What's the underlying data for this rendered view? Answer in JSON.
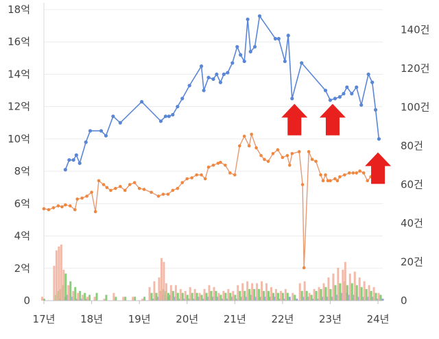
{
  "chart_data": {
    "type": "line",
    "xlabels": [
      "17년",
      "18년",
      "19년",
      "20년",
      "21년",
      "22년",
      "23년",
      "24년"
    ],
    "xlim": [
      2017.0,
      2024.1
    ],
    "y_left": {
      "ticks": [
        "0",
        "2억",
        "4억",
        "6억",
        "8억",
        "10억",
        "12억",
        "14억",
        "16억",
        "18억"
      ],
      "range": [
        0,
        18
      ],
      "unit": "억"
    },
    "y_right": {
      "ticks": [
        "0",
        "20건",
        "40건",
        "60건",
        "80건",
        "100건",
        "120건",
        "140건"
      ],
      "range": [
        0,
        160
      ],
      "unit": "건"
    },
    "grid": true,
    "series": [
      {
        "axis": "left",
        "color": "#5a86d6",
        "points": [
          [
            2017.45,
            8.1
          ],
          [
            2017.53,
            8.7
          ],
          [
            2017.62,
            8.7
          ],
          [
            2017.68,
            9.0
          ],
          [
            2017.75,
            8.5
          ],
          [
            2017.88,
            9.8
          ],
          [
            2017.97,
            10.5
          ],
          [
            2018.2,
            10.5
          ],
          [
            2018.3,
            10.2
          ],
          [
            2018.45,
            11.4
          ],
          [
            2018.6,
            11.0
          ],
          [
            2019.05,
            12.3
          ],
          [
            2019.45,
            11.1
          ],
          [
            2019.55,
            11.4
          ],
          [
            2019.62,
            11.4
          ],
          [
            2019.7,
            11.5
          ],
          [
            2019.8,
            12.0
          ],
          [
            2019.9,
            12.5
          ],
          [
            2020.05,
            13.3
          ],
          [
            2020.3,
            14.5
          ],
          [
            2020.35,
            13.0
          ],
          [
            2020.45,
            13.8
          ],
          [
            2020.55,
            13.7
          ],
          [
            2020.62,
            14.0
          ],
          [
            2020.7,
            13.5
          ],
          [
            2020.77,
            14.0
          ],
          [
            2020.85,
            14.1
          ],
          [
            2020.95,
            14.7
          ],
          [
            2021.05,
            15.7
          ],
          [
            2021.12,
            15.2
          ],
          [
            2021.2,
            14.8
          ],
          [
            2021.27,
            17.4
          ],
          [
            2021.33,
            15.4
          ],
          [
            2021.42,
            15.7
          ],
          [
            2021.52,
            17.6
          ],
          [
            2021.85,
            16.2
          ],
          [
            2021.92,
            16.2
          ],
          [
            2022.05,
            14.8
          ],
          [
            2022.12,
            16.4
          ],
          [
            2022.2,
            12.5
          ],
          [
            2022.4,
            14.7
          ],
          [
            2022.9,
            13.0
          ],
          [
            2023.0,
            12.4
          ],
          [
            2023.1,
            12.5
          ],
          [
            2023.2,
            12.6
          ],
          [
            2023.28,
            12.8
          ],
          [
            2023.35,
            13.2
          ],
          [
            2023.45,
            12.8
          ],
          [
            2023.55,
            13.2
          ],
          [
            2023.65,
            12.1
          ],
          [
            2023.8,
            14.0
          ],
          [
            2023.88,
            13.5
          ],
          [
            2023.95,
            11.8
          ],
          [
            2024.02,
            10.0
          ]
        ]
      },
      {
        "axis": "right",
        "color": "#e69a74",
        "marker_color": "#f0873f",
        "points": [
          [
            2017.0,
            47.5
          ],
          [
            2017.1,
            47
          ],
          [
            2017.2,
            48
          ],
          [
            2017.3,
            49
          ],
          [
            2017.38,
            48.5
          ],
          [
            2017.45,
            49.5
          ],
          [
            2017.55,
            49
          ],
          [
            2017.65,
            47
          ],
          [
            2017.7,
            52.5
          ],
          [
            2017.8,
            53
          ],
          [
            2017.9,
            54
          ],
          [
            2018.0,
            56
          ],
          [
            2018.08,
            46
          ],
          [
            2018.15,
            62
          ],
          [
            2018.25,
            60
          ],
          [
            2018.32,
            58.5
          ],
          [
            2018.4,
            57
          ],
          [
            2018.5,
            58
          ],
          [
            2018.6,
            59
          ],
          [
            2018.7,
            57
          ],
          [
            2018.8,
            60
          ],
          [
            2018.9,
            61
          ],
          [
            2019.0,
            58
          ],
          [
            2019.1,
            57.5
          ],
          [
            2019.25,
            56
          ],
          [
            2019.4,
            54
          ],
          [
            2019.5,
            55
          ],
          [
            2019.6,
            55
          ],
          [
            2019.7,
            57
          ],
          [
            2019.8,
            58
          ],
          [
            2019.9,
            61
          ],
          [
            2020.0,
            63
          ],
          [
            2020.1,
            63.5
          ],
          [
            2020.2,
            65
          ],
          [
            2020.3,
            65
          ],
          [
            2020.38,
            63
          ],
          [
            2020.45,
            69
          ],
          [
            2020.55,
            70
          ],
          [
            2020.65,
            71
          ],
          [
            2020.7,
            71.5
          ],
          [
            2020.8,
            70
          ],
          [
            2020.9,
            66
          ],
          [
            2021.0,
            65
          ],
          [
            2021.1,
            80
          ],
          [
            2021.2,
            85
          ],
          [
            2021.3,
            80
          ],
          [
            2021.35,
            86
          ],
          [
            2021.45,
            79
          ],
          [
            2021.55,
            75
          ],
          [
            2021.62,
            73
          ],
          [
            2021.7,
            72
          ],
          [
            2021.8,
            76
          ],
          [
            2021.9,
            78
          ],
          [
            2022.0,
            74
          ],
          [
            2022.1,
            75
          ],
          [
            2022.15,
            70
          ],
          [
            2022.2,
            76
          ],
          [
            2022.35,
            77
          ],
          [
            2022.42,
            60
          ],
          [
            2022.45,
            17
          ],
          [
            2022.55,
            77
          ],
          [
            2022.62,
            73
          ],
          [
            2022.7,
            72
          ],
          [
            2022.8,
            65
          ],
          [
            2022.85,
            62
          ],
          [
            2022.9,
            65
          ],
          [
            2022.95,
            62
          ],
          [
            2023.0,
            62
          ],
          [
            2023.1,
            63
          ],
          [
            2023.15,
            62
          ],
          [
            2023.2,
            64
          ],
          [
            2023.3,
            65
          ],
          [
            2023.4,
            66
          ],
          [
            2023.48,
            66
          ],
          [
            2023.55,
            66
          ],
          [
            2023.62,
            67
          ],
          [
            2023.7,
            66
          ],
          [
            2023.78,
            62
          ],
          [
            2023.85,
            64
          ],
          [
            2023.92,
            70
          ],
          [
            2024.0,
            71.5
          ],
          [
            2024.05,
            69
          ]
        ]
      }
    ],
    "volume_bars": {
      "axis": "right",
      "colors": [
        "#f2b2a0",
        "#7cc96e",
        "#8d93e0"
      ],
      "bars": [
        [
          2017.0,
          2,
          1,
          0
        ],
        [
          2017.25,
          18,
          3,
          0
        ],
        [
          2017.3,
          26,
          5,
          1
        ],
        [
          2017.35,
          28,
          6,
          0
        ],
        [
          2017.4,
          29,
          8,
          2
        ],
        [
          2017.45,
          16,
          14,
          3
        ],
        [
          2017.55,
          8,
          10,
          2
        ],
        [
          2017.65,
          5,
          7,
          1
        ],
        [
          2017.75,
          4,
          5,
          1
        ],
        [
          2017.85,
          3,
          4,
          1
        ],
        [
          2017.95,
          2,
          3,
          0
        ],
        [
          2018.1,
          2,
          4,
          0
        ],
        [
          2018.3,
          1,
          3,
          0
        ],
        [
          2018.5,
          4,
          2,
          0
        ],
        [
          2018.7,
          2,
          2,
          0
        ],
        [
          2018.9,
          2,
          2,
          0
        ],
        [
          2019.1,
          1,
          2,
          0
        ],
        [
          2019.25,
          7,
          4,
          1
        ],
        [
          2019.35,
          10,
          4,
          2
        ],
        [
          2019.45,
          12,
          5,
          3
        ],
        [
          2019.5,
          22,
          6,
          3
        ],
        [
          2019.55,
          20,
          5,
          2
        ],
        [
          2019.6,
          9,
          4,
          3
        ],
        [
          2019.7,
          8,
          5,
          2
        ],
        [
          2019.8,
          8,
          4,
          1
        ],
        [
          2019.9,
          6,
          4,
          1
        ],
        [
          2020.0,
          5,
          3,
          1
        ],
        [
          2020.1,
          7,
          4,
          1
        ],
        [
          2020.2,
          6,
          4,
          2
        ],
        [
          2020.3,
          4,
          3,
          1
        ],
        [
          2020.4,
          6,
          4,
          2
        ],
        [
          2020.5,
          8,
          5,
          2
        ],
        [
          2020.6,
          7,
          5,
          2
        ],
        [
          2020.7,
          4,
          3,
          1
        ],
        [
          2020.8,
          5,
          4,
          1
        ],
        [
          2020.9,
          6,
          4,
          2
        ],
        [
          2021.0,
          5,
          3,
          1
        ],
        [
          2021.1,
          8,
          5,
          2
        ],
        [
          2021.2,
          9,
          5,
          2
        ],
        [
          2021.3,
          10,
          6,
          3
        ],
        [
          2021.4,
          9,
          6,
          2
        ],
        [
          2021.5,
          9,
          6,
          2
        ],
        [
          2021.6,
          10,
          5,
          2
        ],
        [
          2021.7,
          9,
          5,
          2
        ],
        [
          2021.8,
          7,
          4,
          2
        ],
        [
          2021.9,
          6,
          4,
          1
        ],
        [
          2022.0,
          5,
          4,
          1
        ],
        [
          2022.1,
          6,
          4,
          2
        ],
        [
          2022.25,
          4,
          3,
          1
        ],
        [
          2022.4,
          9,
          5,
          2
        ],
        [
          2022.5,
          10,
          5,
          2
        ],
        [
          2022.6,
          4,
          3,
          1
        ],
        [
          2022.7,
          6,
          5,
          1
        ],
        [
          2022.8,
          7,
          6,
          2
        ],
        [
          2022.9,
          9,
          7,
          2
        ],
        [
          2023.0,
          12,
          6,
          2
        ],
        [
          2023.1,
          14,
          8,
          3
        ],
        [
          2023.2,
          17,
          9,
          4
        ],
        [
          2023.3,
          16,
          10,
          4
        ],
        [
          2023.35,
          20,
          8,
          3
        ],
        [
          2023.45,
          14,
          9,
          3
        ],
        [
          2023.55,
          15,
          8,
          2
        ],
        [
          2023.65,
          12,
          7,
          2
        ],
        [
          2023.75,
          10,
          6,
          2
        ],
        [
          2023.85,
          8,
          5,
          2
        ],
        [
          2023.95,
          7,
          4,
          1
        ],
        [
          2024.05,
          4,
          3,
          1
        ]
      ]
    },
    "annotations": [
      {
        "type": "arrow-up",
        "color": "#e8211e",
        "x": 2022.25,
        "y_left": 12.0
      },
      {
        "type": "arrow-up",
        "color": "#e8211e",
        "x": 2023.05,
        "y_left": 12.0
      },
      {
        "type": "arrow-up",
        "color": "#e8211e",
        "x": 2024.0,
        "y_left": 9.0
      }
    ]
  }
}
